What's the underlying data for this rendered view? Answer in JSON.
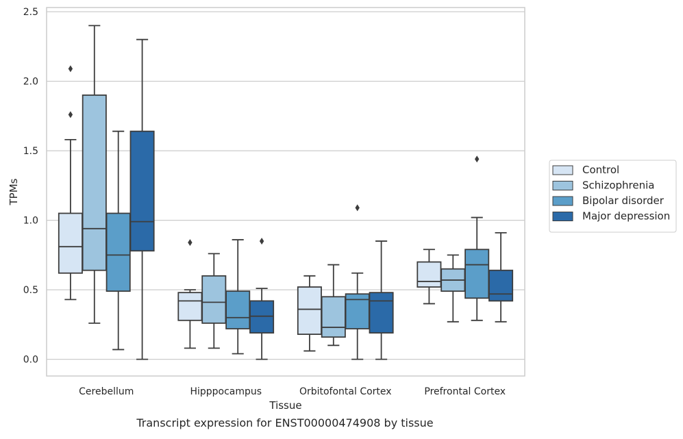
{
  "chart_data": {
    "type": "box",
    "xlabel": "Tissue",
    "ylabel": "TPMs",
    "caption": "Transcript expression for ENST00000474908 by tissue",
    "ylim": [
      -0.12,
      2.53
    ],
    "yticks": [
      0.0,
      0.5,
      1.0,
      1.5,
      2.0,
      2.5
    ],
    "ytick_labels": [
      "0.0",
      "0.5",
      "1.0",
      "1.5",
      "2.0",
      "2.5"
    ],
    "grid": "horizontal",
    "legend_position": "right",
    "categories": [
      "Cerebellum",
      "Hipppocampus",
      "Orbitofontal Cortex",
      "Prefrontal Cortex"
    ],
    "series": [
      {
        "name": "Control",
        "color": "#d6e5f4",
        "boxes": [
          {
            "whisker_low": 0.43,
            "q1": 0.62,
            "median": 0.81,
            "q3": 1.05,
            "whisker_high": 1.58,
            "outliers": [
              1.76,
              2.09
            ]
          },
          {
            "whisker_low": 0.08,
            "q1": 0.28,
            "median": 0.42,
            "q3": 0.48,
            "whisker_high": 0.5,
            "outliers": [
              0.84
            ]
          },
          {
            "whisker_low": 0.06,
            "q1": 0.18,
            "median": 0.36,
            "q3": 0.52,
            "whisker_high": 0.6,
            "outliers": []
          },
          {
            "whisker_low": 0.4,
            "q1": 0.52,
            "median": 0.56,
            "q3": 0.7,
            "whisker_high": 0.79,
            "outliers": []
          }
        ]
      },
      {
        "name": "Schizophrenia",
        "color": "#9dc4de",
        "boxes": [
          {
            "whisker_low": 0.26,
            "q1": 0.64,
            "median": 0.94,
            "q3": 1.9,
            "whisker_high": 2.4,
            "outliers": []
          },
          {
            "whisker_low": 0.08,
            "q1": 0.26,
            "median": 0.41,
            "q3": 0.6,
            "whisker_high": 0.76,
            "outliers": []
          },
          {
            "whisker_low": 0.1,
            "q1": 0.16,
            "median": 0.23,
            "q3": 0.45,
            "whisker_high": 0.68,
            "outliers": []
          },
          {
            "whisker_low": 0.27,
            "q1": 0.49,
            "median": 0.57,
            "q3": 0.65,
            "whisker_high": 0.75,
            "outliers": []
          }
        ]
      },
      {
        "name": "Bipolar disorder",
        "color": "#5b9ec9",
        "boxes": [
          {
            "whisker_low": 0.07,
            "q1": 0.49,
            "median": 0.75,
            "q3": 1.05,
            "whisker_high": 1.64,
            "outliers": []
          },
          {
            "whisker_low": 0.04,
            "q1": 0.22,
            "median": 0.3,
            "q3": 0.49,
            "whisker_high": 0.86,
            "outliers": []
          },
          {
            "whisker_low": 0.0,
            "q1": 0.22,
            "median": 0.43,
            "q3": 0.47,
            "whisker_high": 0.62,
            "outliers": [
              1.09
            ]
          },
          {
            "whisker_low": 0.28,
            "q1": 0.44,
            "median": 0.68,
            "q3": 0.79,
            "whisker_high": 1.02,
            "outliers": [
              1.44
            ]
          }
        ]
      },
      {
        "name": "Major depression",
        "color": "#2b6aa8",
        "boxes": [
          {
            "whisker_low": 0.0,
            "q1": 0.78,
            "median": 0.99,
            "q3": 1.64,
            "whisker_high": 2.3,
            "outliers": []
          },
          {
            "whisker_low": 0.0,
            "q1": 0.19,
            "median": 0.31,
            "q3": 0.42,
            "whisker_high": 0.51,
            "outliers": [
              0.85
            ]
          },
          {
            "whisker_low": 0.0,
            "q1": 0.19,
            "median": 0.42,
            "q3": 0.48,
            "whisker_high": 0.85,
            "outliers": []
          },
          {
            "whisker_low": 0.27,
            "q1": 0.42,
            "median": 0.47,
            "q3": 0.64,
            "whisker_high": 0.91,
            "outliers": []
          }
        ]
      }
    ]
  }
}
